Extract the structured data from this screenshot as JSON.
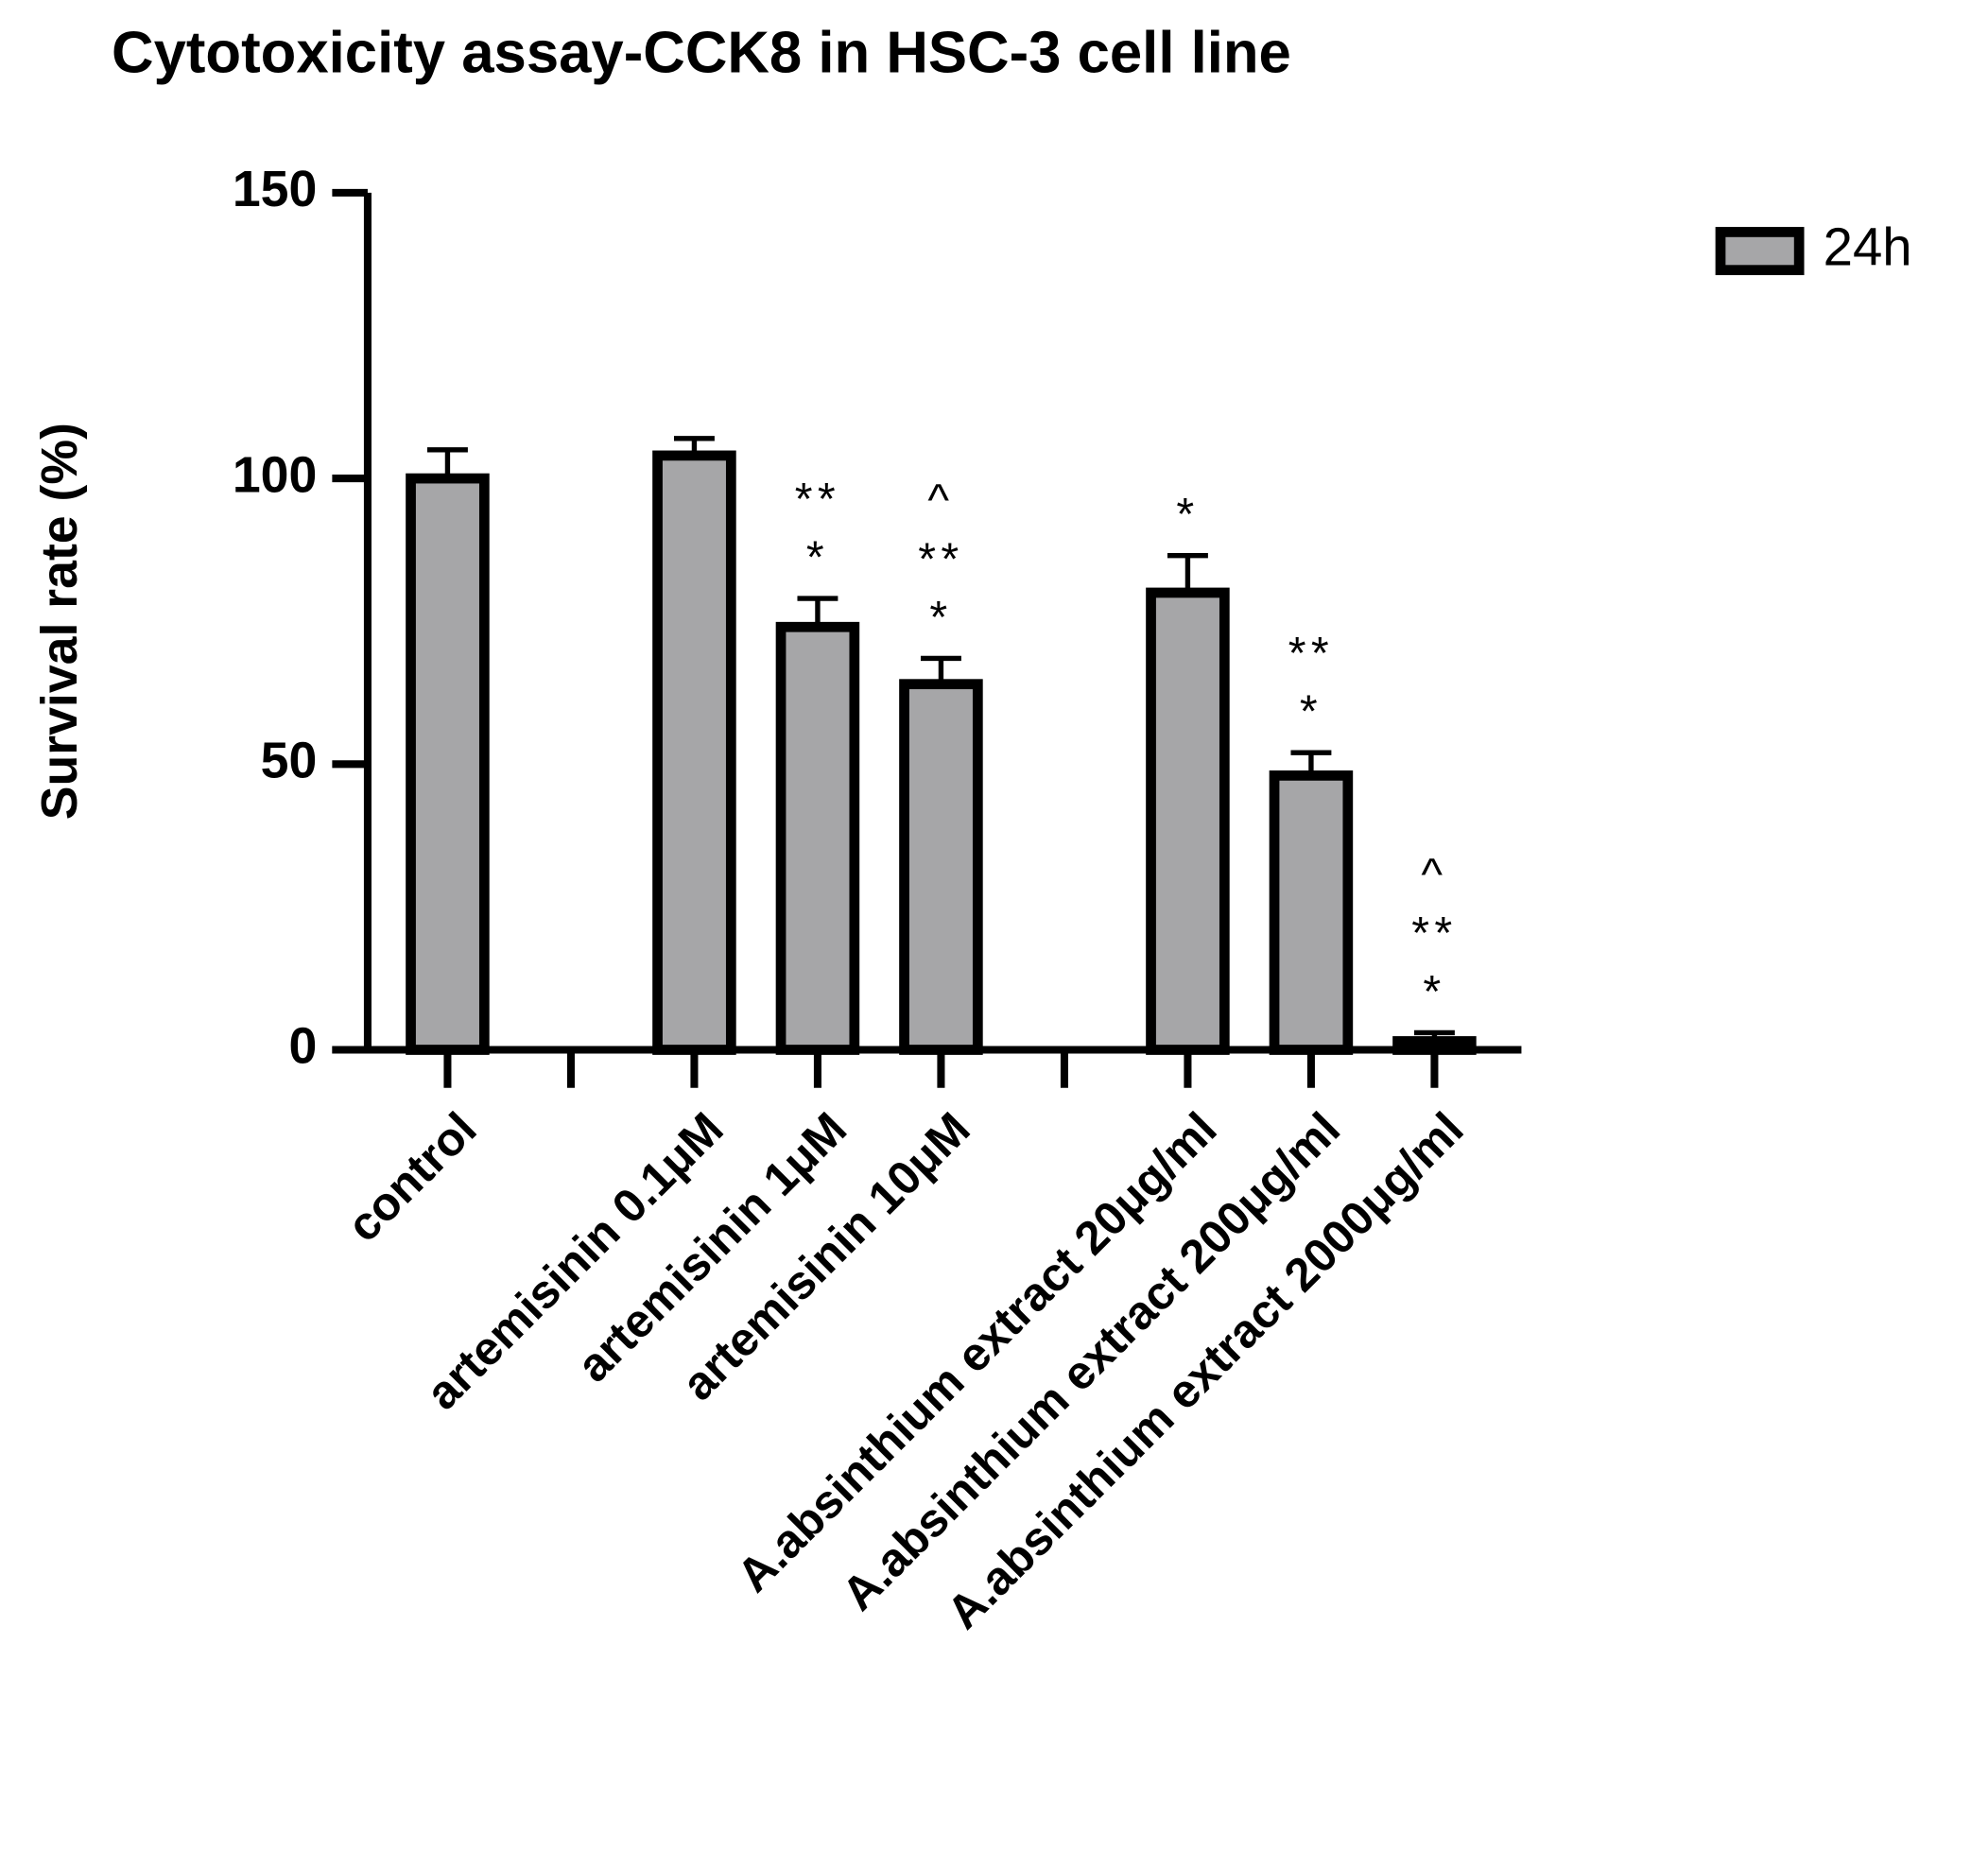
{
  "chart_data": {
    "type": "bar",
    "title": "Cytotoxicity assay-CCK8 in HSC-3 cell line",
    "y_label": "Survival rate (%)",
    "categories": [
      "control",
      null,
      "artemisinin 0.1μM",
      "artemisinin 1μM",
      "artemisinin 10μM",
      null,
      "A.absinthium extract 20μg/ml",
      "A.absinthium extract 200μg/ml",
      "A.absinthium extract 2000μg/ml"
    ],
    "series": [
      {
        "name": "24h",
        "color": "#a6a6a8",
        "values": [
          100,
          null,
          104,
          74,
          64,
          null,
          80,
          48,
          1.5
        ],
        "errors": [
          5,
          null,
          3,
          5,
          4.5,
          null,
          6.5,
          4,
          1.5
        ]
      }
    ],
    "annotations": [
      null,
      null,
      null,
      [
        "**",
        "*"
      ],
      [
        "^",
        "**",
        "*"
      ],
      null,
      [
        "*"
      ],
      [
        "**",
        "*"
      ],
      [
        "^",
        "**",
        "*"
      ]
    ],
    "ylim": [
      0,
      150
    ],
    "yticks": [
      0,
      50,
      100,
      150
    ],
    "legend": "top-right"
  }
}
